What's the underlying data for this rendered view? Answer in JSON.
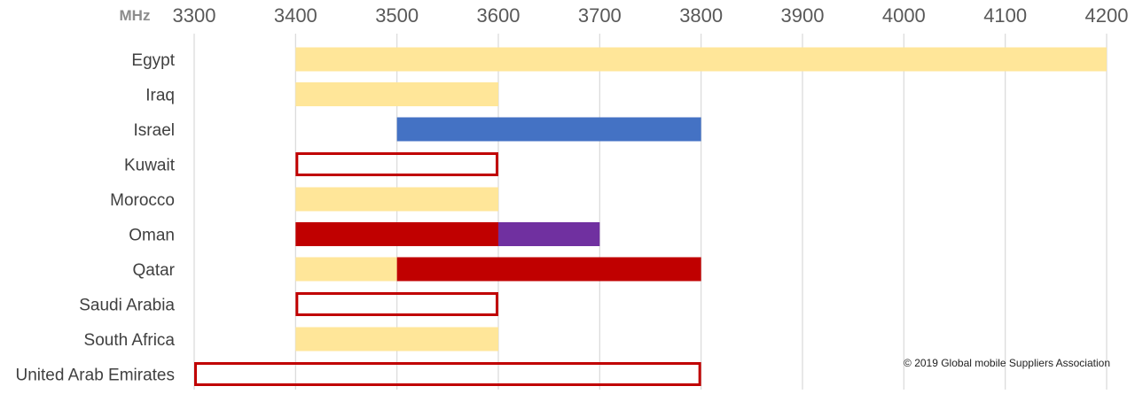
{
  "chart_data": {
    "type": "bar",
    "orientation": "horizontal",
    "subtype": "range",
    "unit_label": "MHz",
    "x_ticks": [
      3300,
      3400,
      3500,
      3600,
      3700,
      3800,
      3900,
      4000,
      4100,
      4200
    ],
    "xlim": [
      3300,
      4200
    ],
    "grid": "vertical",
    "categories": [
      "Egypt",
      "Iraq",
      "Israel",
      "Kuwait",
      "Morocco",
      "Oman",
      "Qatar",
      "Saudi Arabia",
      "South Africa",
      "United Arab Emirates"
    ],
    "colors": {
      "yellow": "#FFE699",
      "blue": "#4472C4",
      "red": "#C00000",
      "purple": "#7030A0",
      "outline": "#C00000",
      "grid": "#D9D9D9",
      "tick_text": "#595959",
      "label_text": "#404040"
    },
    "ranges": [
      {
        "category": "Egypt",
        "start": 3400,
        "end": 4200,
        "style": "yellow"
      },
      {
        "category": "Iraq",
        "start": 3400,
        "end": 3600,
        "style": "yellow"
      },
      {
        "category": "Israel",
        "start": 3500,
        "end": 3800,
        "style": "blue"
      },
      {
        "category": "Kuwait",
        "start": 3400,
        "end": 3600,
        "style": "outline"
      },
      {
        "category": "Morocco",
        "start": 3400,
        "end": 3600,
        "style": "yellow"
      },
      {
        "category": "Oman",
        "start": 3400,
        "end": 3600,
        "style": "red"
      },
      {
        "category": "Oman",
        "start": 3600,
        "end": 3700,
        "style": "purple"
      },
      {
        "category": "Qatar",
        "start": 3400,
        "end": 3500,
        "style": "yellow"
      },
      {
        "category": "Qatar",
        "start": 3500,
        "end": 3800,
        "style": "red"
      },
      {
        "category": "Saudi Arabia",
        "start": 3400,
        "end": 3600,
        "style": "outline"
      },
      {
        "category": "South Africa",
        "start": 3400,
        "end": 3600,
        "style": "yellow"
      },
      {
        "category": "United Arab Emirates",
        "start": 3300,
        "end": 3800,
        "style": "outline"
      }
    ]
  },
  "copyright": "© 2019 Global mobile Suppliers Association"
}
